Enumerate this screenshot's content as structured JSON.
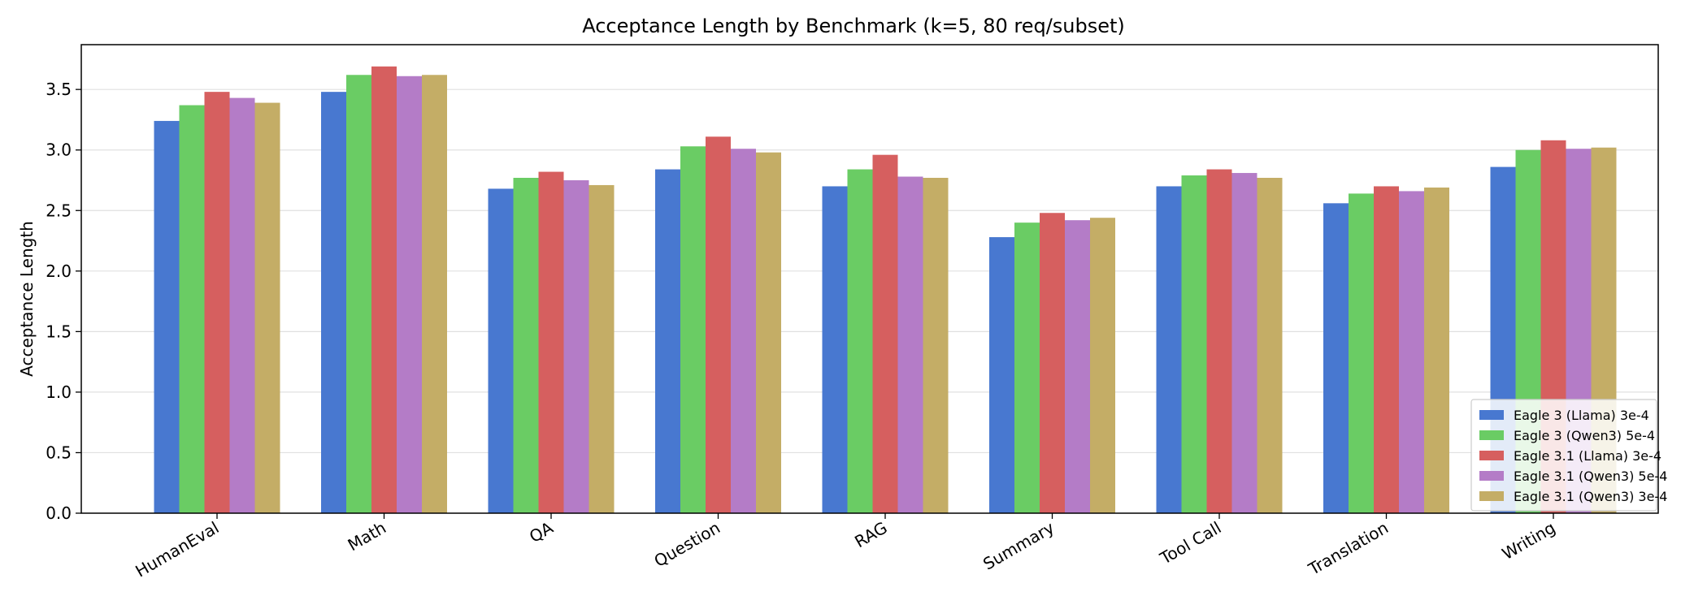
{
  "chart_data": {
    "type": "bar",
    "title": "Acceptance Length by Benchmark (k=5, 80 req/subset)",
    "xlabel": "",
    "ylabel": "Acceptance Length",
    "ylim": [
      0,
      3.87
    ],
    "yticks": [
      0.0,
      0.5,
      1.0,
      1.5,
      2.0,
      2.5,
      3.0,
      3.5
    ],
    "ytick_labels": [
      "0.0",
      "0.5",
      "1.0",
      "1.5",
      "2.0",
      "2.5",
      "3.0",
      "3.5"
    ],
    "grid": "horizontal",
    "legend_position": "bottom-right",
    "categories": [
      "HumanEval",
      "Math",
      "QA",
      "Question",
      "RAG",
      "Summary",
      "Tool Call",
      "Translation",
      "Writing"
    ],
    "series": [
      {
        "name": "Eagle 3 (Llama) 3e-4",
        "color": "#4878d0",
        "values": [
          3.24,
          3.48,
          2.68,
          2.84,
          2.7,
          2.28,
          2.7,
          2.56,
          2.86
        ]
      },
      {
        "name": "Eagle 3 (Qwen3) 5e-4",
        "color": "#6acc64",
        "values": [
          3.37,
          3.62,
          2.77,
          3.03,
          2.84,
          2.4,
          2.79,
          2.64,
          3.0
        ]
      },
      {
        "name": "Eagle 3.1 (Llama) 3e-4",
        "color": "#d65f5f",
        "values": [
          3.48,
          3.69,
          2.82,
          3.11,
          2.96,
          2.48,
          2.84,
          2.7,
          3.08
        ]
      },
      {
        "name": "Eagle 3.1 (Qwen3) 5e-4",
        "color": "#b47cc7",
        "values": [
          3.43,
          3.61,
          2.75,
          3.01,
          2.78,
          2.42,
          2.81,
          2.66,
          3.01
        ]
      },
      {
        "name": "Eagle 3.1 (Qwen3) 3e-4",
        "color": "#c4ad66",
        "values": [
          3.39,
          3.62,
          2.71,
          2.98,
          2.77,
          2.44,
          2.77,
          2.69,
          3.02
        ]
      }
    ]
  }
}
